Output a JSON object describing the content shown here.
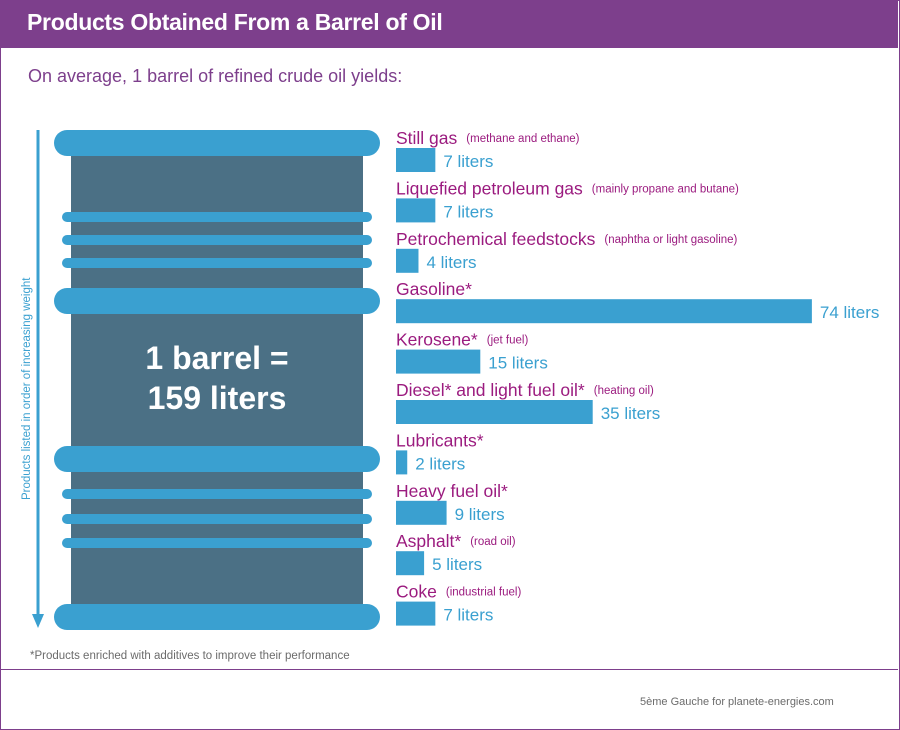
{
  "header": {
    "title": "Products Obtained From a Barrel of Oil"
  },
  "subtitle": "On average, 1 barrel of refined crude oil yields:",
  "axis_label": "Products listed in order of increasing weight",
  "barrel": {
    "line1": "1 barrel =",
    "line2": "159 liters"
  },
  "footnote": "*Products enriched with additives to improve their performance",
  "credit": "5ème Gauche for planete-energies.com",
  "colors": {
    "purple": "#7d3f8c",
    "magenta": "#9b1b7f",
    "blue": "#3aa0d0",
    "barrel_body": "#4b7085",
    "barrel_rim": "#3aa0d0"
  },
  "chart_data": {
    "type": "bar",
    "orientation": "horizontal",
    "unit": "liters",
    "categories": [
      "Still gas",
      "Liquefied petroleum gas",
      "Petrochemical feedstocks",
      "Gasoline*",
      "Kerosene*",
      "Diesel* and light fuel oil*",
      "Lubricants*",
      "Heavy fuel oil*",
      "Asphalt*",
      "Coke"
    ],
    "notes": [
      "(methane and ethane)",
      "(mainly propane and butane)",
      "(naphtha or light gasoline)",
      "",
      "(jet fuel)",
      "(heating oil)",
      "",
      "",
      "(road oil)",
      "(industrial fuel)"
    ],
    "values": [
      7,
      7,
      4,
      74,
      15,
      35,
      2,
      9,
      5,
      7
    ],
    "value_labels": [
      "7 liters",
      "7 liters",
      "4 liters",
      "74 liters",
      "15 liters",
      "35 liters",
      "2 liters",
      "9 liters",
      "5 liters",
      "7 liters"
    ],
    "total": 159
  }
}
